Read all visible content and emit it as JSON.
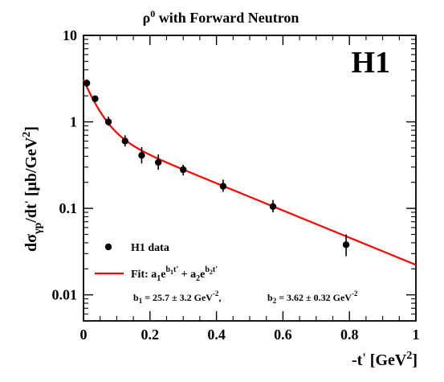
{
  "chart_data": {
    "type": "scatter",
    "title": "ρ⁰ with Forward Neutron",
    "title_main": "ρ",
    "title_sup": "0",
    "title_rest": " with Forward Neutron",
    "xlabel": "-t' [GeV²]",
    "ylabel": "dσγp/dt' [μb/GeV⁻²]",
    "xlim": [
      0,
      1
    ],
    "ylim": [
      0.005,
      10
    ],
    "y_scale": "log",
    "x_ticks": [
      "0",
      "0.2",
      "0.4",
      "0.6",
      "0.8",
      "1"
    ],
    "y_ticks": [
      "0.01",
      "0.1",
      "1",
      "10"
    ],
    "logo": "H1",
    "grid": false,
    "legend_position": "bottom-left",
    "legend": {
      "data_label": "H1 data",
      "fit_label": "Fit: a₁e^(b₁t') + a₂e^(b₂t')",
      "b1_text": "b₁ = 25.7 ± 3.2 GeV⁻²,",
      "b2_text": "b₂ = 3.62 ± 0.32 GeV⁻²"
    },
    "series": [
      {
        "name": "H1 data",
        "kind": "points",
        "color": "#000000",
        "x": [
          0.01,
          0.035,
          0.075,
          0.125,
          0.175,
          0.225,
          0.3,
          0.42,
          0.57,
          0.79
        ],
        "y": [
          2.8,
          1.85,
          1.0,
          0.6,
          0.41,
          0.34,
          0.28,
          0.18,
          0.105,
          0.038
        ],
        "yerr_up": [
          0.3,
          0.15,
          0.15,
          0.1,
          0.1,
          0.08,
          0.04,
          0.035,
          0.02,
          0.012
        ],
        "yerr_down": [
          0.2,
          0.15,
          0.1,
          0.08,
          0.08,
          0.06,
          0.04,
          0.025,
          0.015,
          0.01
        ]
      },
      {
        "name": "Fit",
        "kind": "line",
        "color": "#ff0000",
        "a1": 2.25,
        "b1": 25.7,
        "a2": 0.83,
        "b2": 3.62
      }
    ]
  }
}
